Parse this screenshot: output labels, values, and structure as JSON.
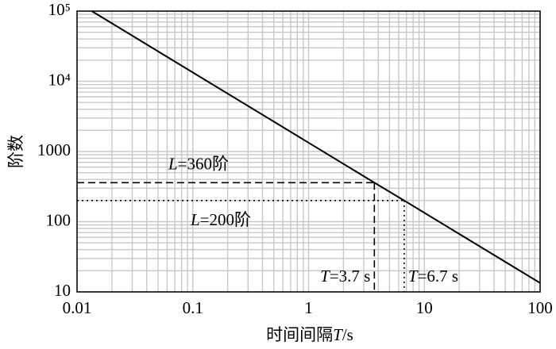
{
  "chart_data": {
    "type": "line",
    "log_x": true,
    "log_y": true,
    "grid": true,
    "minor_grid": true,
    "color": "#000000",
    "x_label": {
      "pre": "时间间隔",
      "var": "T",
      "post": "/s"
    },
    "y_label": "阶数",
    "x": [
      0.0134,
      3.7,
      6.7,
      100
    ],
    "values": [
      100000,
      360,
      200,
      13.4
    ],
    "xlim": [
      0.01,
      100
    ],
    "ylim": [
      10,
      100000
    ],
    "xticks": [
      0.01,
      0.1,
      1,
      10,
      100
    ],
    "yticks": [
      10,
      100,
      1000,
      {
        "value": 10000,
        "label": "10⁴"
      },
      {
        "value": 100000,
        "label": "10⁵"
      }
    ],
    "reference_lines": [
      {
        "x": 3.7,
        "y": 360,
        "style": "dashed",
        "y_text": {
          "var": "L",
          "rest": "=360阶"
        },
        "x_text": {
          "var": "T",
          "rest": "=3.7 s"
        }
      },
      {
        "x": 6.7,
        "y": 200,
        "style": "dotted",
        "y_text": {
          "var": "L",
          "rest": "=200阶"
        },
        "x_text": {
          "var": "T",
          "rest": "=6.7 s"
        }
      }
    ]
  }
}
